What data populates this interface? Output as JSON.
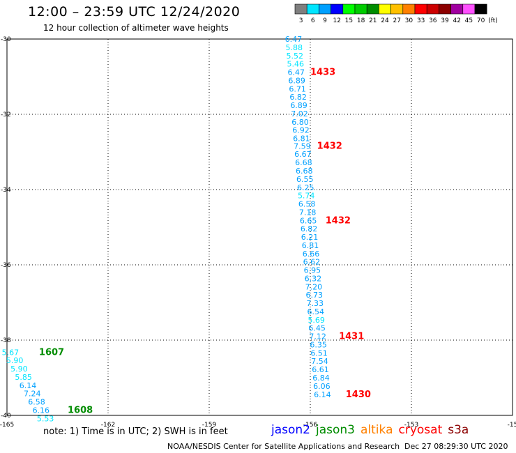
{
  "header": {
    "title": "12:00 – 23:59 UTC 12/24/2020",
    "subtitle": "12 hour collection of altimeter wave heights"
  },
  "legend": {
    "unit": "(ft)",
    "bins": [
      {
        "label": "3",
        "color": "#7f7f7f"
      },
      {
        "label": "6",
        "color": "#00e5ff"
      },
      {
        "label": "9",
        "color": "#00a0ff"
      },
      {
        "label": "12",
        "color": "#0000ff"
      },
      {
        "label": "15",
        "color": "#00ff00"
      },
      {
        "label": "18",
        "color": "#00cc00"
      },
      {
        "label": "21",
        "color": "#008c00"
      },
      {
        "label": "24",
        "color": "#ffff00"
      },
      {
        "label": "27",
        "color": "#ffc000"
      },
      {
        "label": "30",
        "color": "#ff8000"
      },
      {
        "label": "33",
        "color": "#ff0000"
      },
      {
        "label": "36",
        "color": "#cc0000"
      },
      {
        "label": "39",
        "color": "#8c0000"
      },
      {
        "label": "42",
        "color": "#a000a0"
      },
      {
        "label": "45",
        "color": "#ff50ff"
      },
      {
        "label": "70",
        "color": "#000000"
      }
    ]
  },
  "axes": {
    "lon_range": [
      -165,
      -150
    ],
    "lat_range": [
      -40,
      -30
    ],
    "lon_ticks": [
      "-165",
      "-162",
      "-159",
      "-156",
      "-153",
      "-15"
    ],
    "lat_ticks": [
      "-30",
      "-32",
      "-34",
      "-36",
      "-38",
      "-40"
    ]
  },
  "footer": {
    "note": "note: 1) Time is in UTC; 2) SWH is in feet",
    "credit": "NOAA/NESDIS Center for Satellite Applications and Research",
    "timestamp": "Dec 27 08:29:30 UTC 2020"
  },
  "satellites": [
    {
      "name": "jason2",
      "color": "#0000ff"
    },
    {
      "name": "jason3",
      "color": "#008c00"
    },
    {
      "name": "altika",
      "color": "#ff8000"
    },
    {
      "name": "cryosat",
      "color": "#ff0000"
    },
    {
      "name": "s3a",
      "color": "#8c0000"
    }
  ],
  "chart_data": {
    "type": "scatter",
    "x_label": "longitude",
    "y_label": "latitude",
    "xlim": [
      -165,
      -150
    ],
    "ylim": [
      -40,
      -30
    ],
    "grid": true,
    "series": [
      {
        "name": "track-east",
        "points": [
          {
            "lon": -156.5,
            "lat": -30.0,
            "swh": "6.47",
            "color": "#00a0ff"
          },
          {
            "lon": -156.48,
            "lat": -30.22,
            "swh": "5.88",
            "color": "#00e5ff"
          },
          {
            "lon": -156.46,
            "lat": -30.44,
            "swh": "5.52",
            "color": "#00e5ff"
          },
          {
            "lon": -156.44,
            "lat": -30.66,
            "swh": "5.46",
            "color": "#00e5ff"
          },
          {
            "lon": -156.42,
            "lat": -30.88,
            "swh": "6.47",
            "color": "#00a0ff"
          },
          {
            "lon": -156.4,
            "lat": -31.1,
            "swh": "6.89",
            "color": "#00a0ff"
          },
          {
            "lon": -156.38,
            "lat": -31.32,
            "swh": "6.71",
            "color": "#00a0ff"
          },
          {
            "lon": -156.36,
            "lat": -31.54,
            "swh": "6.82",
            "color": "#00a0ff"
          },
          {
            "lon": -156.34,
            "lat": -31.76,
            "swh": "6.89",
            "color": "#00a0ff"
          },
          {
            "lon": -156.32,
            "lat": -31.98,
            "swh": "7.02",
            "color": "#00a0ff"
          },
          {
            "lon": -156.3,
            "lat": -32.2,
            "swh": "6.80",
            "color": "#00a0ff"
          },
          {
            "lon": -156.28,
            "lat": -32.42,
            "swh": "6.92",
            "color": "#00a0ff"
          },
          {
            "lon": -156.26,
            "lat": -32.64,
            "swh": "6.81",
            "color": "#00a0ff"
          },
          {
            "lon": -156.24,
            "lat": -32.84,
            "swh": "7.59",
            "color": "#00a0ff"
          },
          {
            "lon": -156.22,
            "lat": -33.06,
            "swh": "6.67",
            "color": "#00a0ff"
          },
          {
            "lon": -156.2,
            "lat": -33.28,
            "swh": "6.68",
            "color": "#00a0ff"
          },
          {
            "lon": -156.18,
            "lat": -33.5,
            "swh": "6.68",
            "color": "#00a0ff"
          },
          {
            "lon": -156.16,
            "lat": -33.72,
            "swh": "6.55",
            "color": "#00a0ff"
          },
          {
            "lon": -156.14,
            "lat": -33.94,
            "swh": "6.25",
            "color": "#00a0ff"
          },
          {
            "lon": -156.12,
            "lat": -34.16,
            "swh": "5.74",
            "color": "#00e5ff"
          },
          {
            "lon": -156.1,
            "lat": -34.38,
            "swh": "6.58",
            "color": "#00a0ff"
          },
          {
            "lon": -156.08,
            "lat": -34.6,
            "swh": "7.18",
            "color": "#00a0ff"
          },
          {
            "lon": -156.06,
            "lat": -34.82,
            "swh": "6.65",
            "color": "#00a0ff"
          },
          {
            "lon": -156.04,
            "lat": -35.04,
            "swh": "6.82",
            "color": "#00a0ff"
          },
          {
            "lon": -156.02,
            "lat": -35.26,
            "swh": "6.21",
            "color": "#00a0ff"
          },
          {
            "lon": -156.0,
            "lat": -35.48,
            "swh": "6.81",
            "color": "#00a0ff"
          },
          {
            "lon": -155.98,
            "lat": -35.7,
            "swh": "6.66",
            "color": "#00a0ff"
          },
          {
            "lon": -155.96,
            "lat": -35.92,
            "swh": "6.62",
            "color": "#00a0ff"
          },
          {
            "lon": -155.94,
            "lat": -36.14,
            "swh": "6.95",
            "color": "#00a0ff"
          },
          {
            "lon": -155.92,
            "lat": -36.36,
            "swh": "6.32",
            "color": "#00a0ff"
          },
          {
            "lon": -155.9,
            "lat": -36.58,
            "swh": "7.20",
            "color": "#00a0ff"
          },
          {
            "lon": -155.88,
            "lat": -36.8,
            "swh": "6.73",
            "color": "#00a0ff"
          },
          {
            "lon": -155.86,
            "lat": -37.02,
            "swh": "7.33",
            "color": "#00a0ff"
          },
          {
            "lon": -155.84,
            "lat": -37.24,
            "swh": "6.54",
            "color": "#00a0ff"
          },
          {
            "lon": -155.82,
            "lat": -37.46,
            "swh": "5.69",
            "color": "#00e5ff"
          },
          {
            "lon": -155.8,
            "lat": -37.68,
            "swh": "6.45",
            "color": "#00a0ff"
          },
          {
            "lon": -155.78,
            "lat": -37.9,
            "swh": "7.12",
            "color": "#00a0ff"
          },
          {
            "lon": -155.76,
            "lat": -38.12,
            "swh": "6.35",
            "color": "#00a0ff"
          },
          {
            "lon": -155.74,
            "lat": -38.34,
            "swh": "6.51",
            "color": "#00a0ff"
          },
          {
            "lon": -155.72,
            "lat": -38.56,
            "swh": "7.54",
            "color": "#00a0ff"
          },
          {
            "lon": -155.7,
            "lat": -38.78,
            "swh": "6.61",
            "color": "#00a0ff"
          },
          {
            "lon": -155.68,
            "lat": -39.0,
            "swh": "6.84",
            "color": "#00a0ff"
          },
          {
            "lon": -155.66,
            "lat": -39.22,
            "swh": "6.06",
            "color": "#00a0ff"
          },
          {
            "lon": -155.64,
            "lat": -39.44,
            "swh": "6.14",
            "color": "#00a0ff"
          }
        ],
        "time_labels": [
          {
            "lon": -156.0,
            "lat": -30.88,
            "text": "1433",
            "color": "#ff0000"
          },
          {
            "lon": -155.8,
            "lat": -32.84,
            "text": "1432",
            "color": "#ff0000"
          },
          {
            "lon": -155.55,
            "lat": -34.82,
            "text": "1432",
            "color": "#ff0000"
          },
          {
            "lon": -155.15,
            "lat": -37.9,
            "text": "1431",
            "color": "#ff0000"
          },
          {
            "lon": -154.95,
            "lat": -39.44,
            "text": "1430",
            "color": "#ff0000"
          }
        ]
      },
      {
        "name": "track-west",
        "points": [
          {
            "lon": -164.9,
            "lat": -38.32,
            "swh": "5.67",
            "color": "#00e5ff"
          },
          {
            "lon": -164.77,
            "lat": -38.54,
            "swh": "5.90",
            "color": "#00e5ff"
          },
          {
            "lon": -164.64,
            "lat": -38.76,
            "swh": "5.90",
            "color": "#00e5ff"
          },
          {
            "lon": -164.51,
            "lat": -38.98,
            "swh": "5.85",
            "color": "#00e5ff"
          },
          {
            "lon": -164.38,
            "lat": -39.2,
            "swh": "6.14",
            "color": "#00a0ff"
          },
          {
            "lon": -164.25,
            "lat": -39.42,
            "swh": "7.24",
            "color": "#00a0ff"
          },
          {
            "lon": -164.12,
            "lat": -39.64,
            "swh": "6.58",
            "color": "#00a0ff"
          },
          {
            "lon": -163.99,
            "lat": -39.86,
            "swh": "6.16",
            "color": "#00a0ff"
          },
          {
            "lon": -163.86,
            "lat": -40.08,
            "swh": "5.53",
            "color": "#00e5ff"
          }
        ],
        "time_labels": [
          {
            "lon": -164.05,
            "lat": -38.32,
            "text": "1607",
            "color": "#008c00"
          },
          {
            "lon": -163.2,
            "lat": -39.86,
            "text": "1608",
            "color": "#008c00"
          }
        ]
      }
    ]
  }
}
